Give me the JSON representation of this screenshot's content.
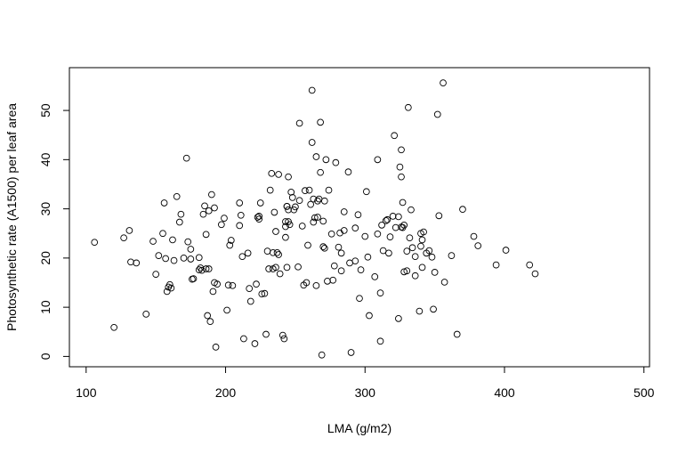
{
  "chart_data": {
    "type": "scatter",
    "title": "",
    "xlabel": "LMA (g/m2)",
    "ylabel": "Photosynthetic rate (A1500) per leaf area",
    "xlim": [
      88,
      504
    ],
    "ylim": [
      -2.1,
      58.7
    ],
    "xticks": [
      100,
      200,
      300,
      400,
      500
    ],
    "yticks": [
      0,
      10,
      20,
      30,
      40,
      50
    ],
    "grid": false,
    "legend": "none",
    "marker": "open-circle",
    "x": [
      106,
      120,
      127,
      131,
      132,
      136,
      143,
      148,
      150,
      152,
      155,
      156,
      157,
      158,
      159,
      160,
      161,
      162,
      163,
      165,
      167,
      168,
      170,
      172,
      173,
      175,
      175,
      176,
      177,
      181,
      181,
      182,
      183,
      184,
      185,
      186,
      186,
      187,
      188,
      188,
      189,
      190,
      191,
      192,
      192,
      193,
      194,
      197,
      199,
      201,
      202,
      203,
      204,
      205,
      210,
      210,
      211,
      212,
      213,
      216,
      217,
      218,
      221,
      222,
      223,
      224,
      224,
      225,
      226,
      228,
      229,
      230,
      231,
      232,
      233,
      234,
      234,
      235,
      236,
      236,
      237,
      238,
      238,
      239,
      241,
      242,
      243,
      243,
      243,
      244,
      244,
      244,
      245,
      245,
      245,
      246,
      247,
      248,
      249,
      250,
      252,
      253,
      253,
      255,
      256,
      257,
      258,
      259,
      260,
      261,
      262,
      262,
      263,
      263,
      264,
      265,
      265,
      266,
      266,
      267,
      268,
      268,
      269,
      270,
      270,
      271,
      271,
      272,
      273,
      274,
      276,
      277,
      278,
      279,
      281,
      282,
      283,
      283,
      285,
      285,
      288,
      289,
      290,
      293,
      293,
      295,
      296,
      297,
      300,
      301,
      302,
      303,
      307,
      309,
      309,
      311,
      311,
      312,
      313,
      315,
      316,
      317,
      318,
      320,
      321,
      322,
      324,
      324,
      325,
      326,
      326,
      326,
      327,
      327,
      328,
      328,
      330,
      330,
      331,
      332,
      333,
      334,
      336,
      336,
      339,
      340,
      340,
      341,
      341,
      342,
      344,
      346,
      348,
      349,
      350,
      352,
      353,
      356,
      357,
      362,
      366,
      370,
      378,
      381,
      394,
      401,
      418,
      422
    ],
    "y": [
      23.2,
      5.9,
      24.1,
      25.6,
      19.2,
      19.0,
      8.6,
      23.4,
      16.7,
      20.5,
      25.0,
      31.2,
      19.9,
      13.2,
      14.1,
      14.6,
      13.9,
      23.7,
      19.5,
      32.5,
      27.3,
      28.9,
      20.0,
      40.3,
      23.3,
      19.8,
      21.8,
      15.7,
      15.8,
      17.6,
      20.1,
      18.0,
      17.5,
      28.9,
      30.6,
      24.8,
      17.8,
      8.3,
      29.6,
      17.8,
      7.1,
      32.9,
      13.2,
      15.0,
      30.2,
      1.9,
      14.7,
      26.8,
      28.1,
      9.4,
      14.5,
      22.6,
      23.6,
      14.4,
      31.2,
      26.6,
      28.7,
      20.3,
      3.6,
      21.0,
      13.8,
      11.2,
      2.6,
      14.7,
      28.3,
      27.9,
      28.5,
      31.2,
      12.7,
      12.8,
      4.5,
      21.4,
      17.8,
      33.8,
      37.2,
      21.1,
      17.8,
      29.3,
      18.1,
      25.4,
      21.1,
      20.7,
      37.0,
      16.8,
      4.3,
      3.6,
      24.2,
      27.4,
      26.4,
      30.5,
      30.5,
      18.1,
      36.5,
      27.4,
      29.8,
      26.8,
      33.4,
      32.3,
      29.8,
      30.4,
      18.2,
      31.7,
      47.4,
      26.5,
      14.5,
      33.7,
      15.0,
      22.6,
      33.8,
      30.9,
      54.1,
      43.5,
      27.3,
      32.0,
      28.2,
      14.4,
      40.6,
      28.3,
      31.6,
      32.0,
      47.6,
      37.4,
      0.3,
      27.5,
      22.3,
      22.0,
      31.6,
      40.0,
      15.3,
      33.8,
      24.9,
      15.5,
      18.4,
      39.4,
      22.2,
      25.1,
      21.0,
      17.4,
      25.6,
      29.4,
      37.5,
      19.0,
      0.8,
      19.4,
      26.1,
      28.8,
      11.8,
      17.6,
      24.4,
      33.5,
      20.2,
      8.3,
      16.2,
      40.0,
      24.9,
      12.9,
      3.1,
      26.7,
      21.5,
      27.6,
      27.8,
      21.0,
      24.3,
      28.5,
      44.9,
      26.2,
      28.4,
      7.7,
      38.5,
      42.0,
      36.5,
      26.3,
      26.2,
      31.3,
      17.2,
      26.7,
      17.4,
      21.4,
      50.6,
      24.1,
      29.8,
      22.1,
      20.3,
      16.4,
      9.2,
      25.0,
      22.4,
      18.1,
      23.7,
      25.3,
      21.0,
      21.5,
      20.2,
      9.6,
      17.1,
      49.2,
      28.6,
      55.6,
      15.1,
      20.5,
      4.5,
      29.9,
      24.4,
      22.5,
      18.6,
      21.6,
      18.6,
      16.8
    ]
  }
}
